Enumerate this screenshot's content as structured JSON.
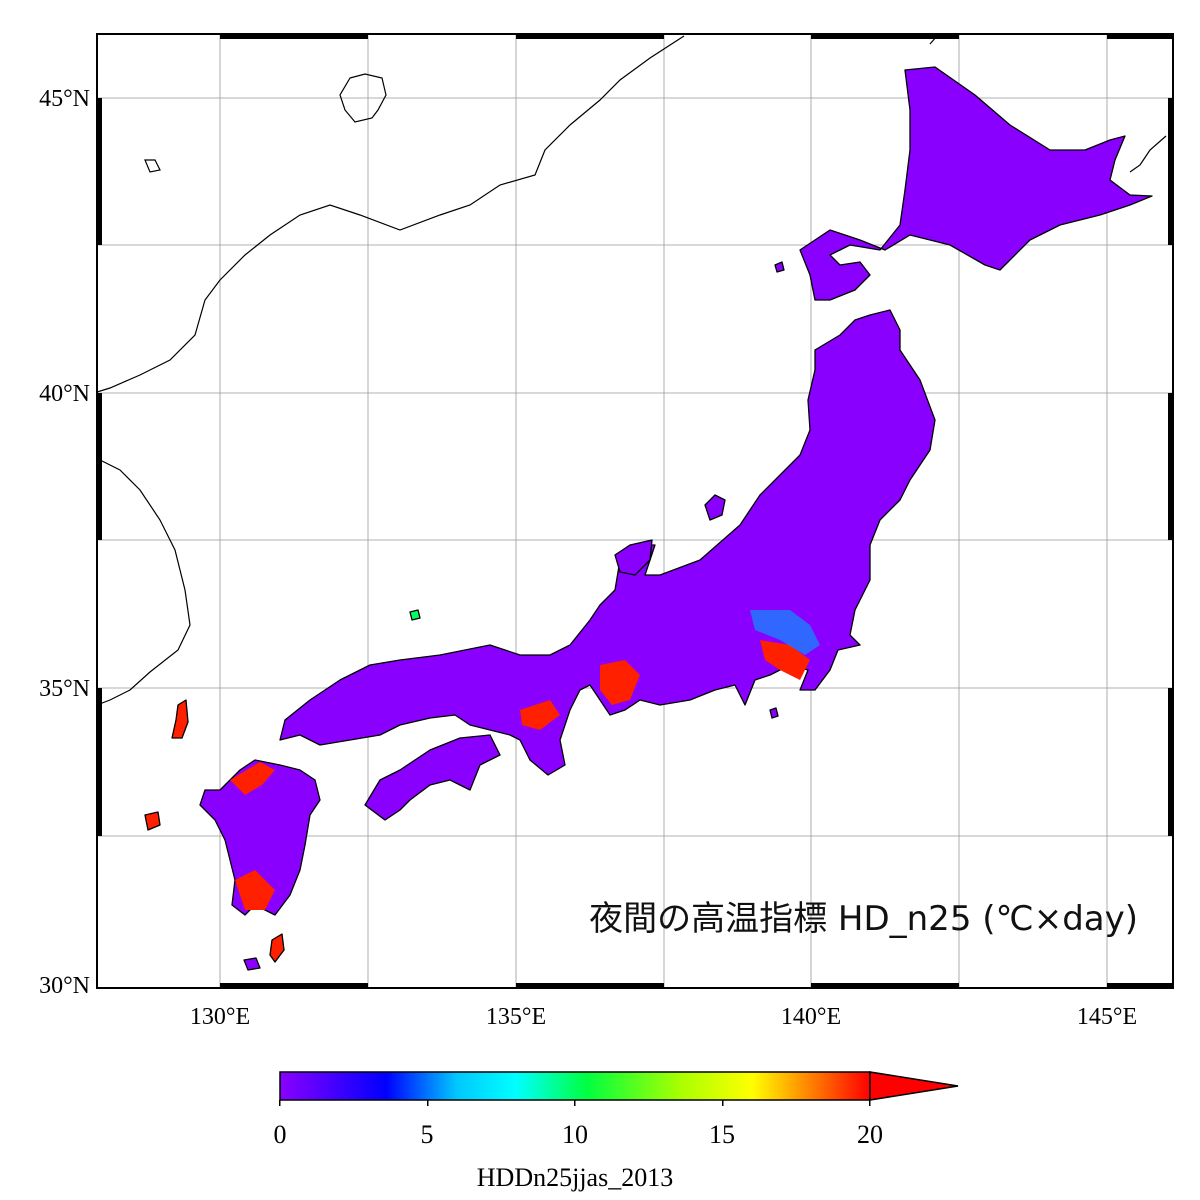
{
  "map": {
    "title": "夜間の高温指標 HD_n25 (℃×day)",
    "lon_ticks": [
      "130°E",
      "135°E",
      "140°E",
      "145°E"
    ],
    "lat_ticks": [
      "45°N",
      "40°N",
      "35°N",
      "30°N"
    ],
    "lon_range": [
      128,
      146
    ],
    "lat_range": [
      30,
      46
    ],
    "land_fill": "#8a00ff",
    "hot_fill": "#ff2000",
    "coast_color": "#000000"
  },
  "colorbar": {
    "ticks": [
      "0",
      "5",
      "10",
      "15",
      "20"
    ],
    "dataset_label": "HDDn25jjas_2013",
    "min": 0,
    "max": 20,
    "overflow_color": "#ff0000",
    "colors": [
      "#8a00ff",
      "#0000ff",
      "#00ffff",
      "#00ff00",
      "#ffff00",
      "#ff0000"
    ]
  }
}
